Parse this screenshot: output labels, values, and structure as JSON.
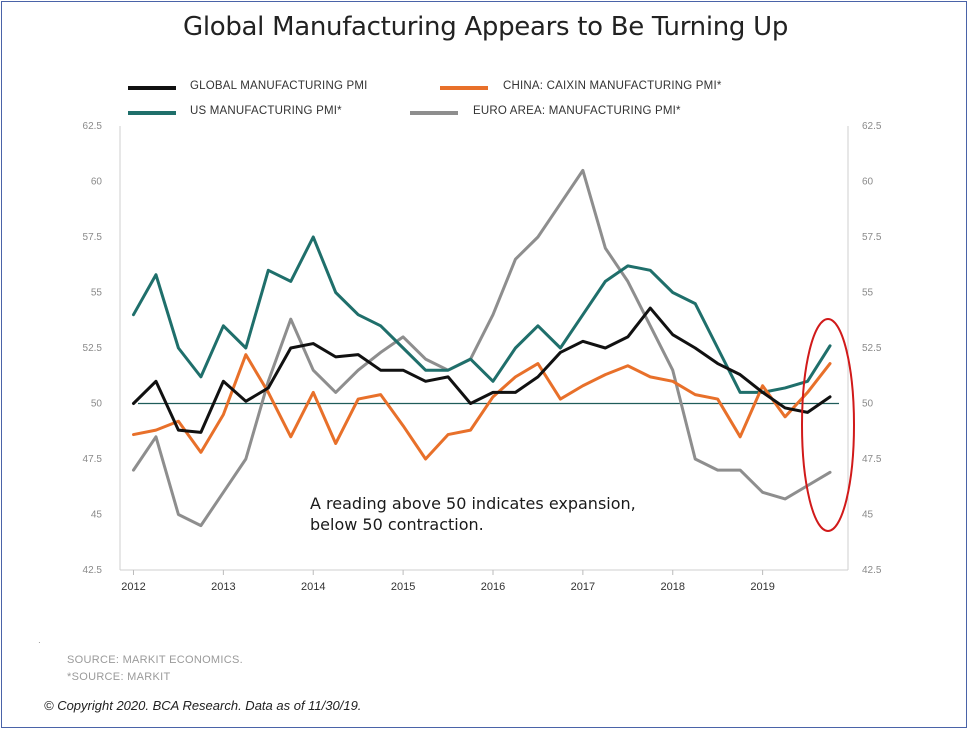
{
  "title": "Global Manufacturing Appears to Be Turning Up",
  "legend": [
    {
      "label": "GLOBAL MANUFACTURING PMI",
      "color": "#111111"
    },
    {
      "label": "CHINA: CAIXIN MANUFACTURING PMI*",
      "color": "#e8702a"
    },
    {
      "label": "US MANUFACTURING PMI*",
      "color": "#1f6f6b"
    },
    {
      "label": "EURO AREA: MANUFACTURING PMI*",
      "color": "#8e8e8e"
    }
  ],
  "annotation": "A reading above 50 indicates expansion, below 50 contraction.",
  "annotation_line1": "A reading above 50 indicates expansion,",
  "annotation_line2": "below 50 contraction.",
  "source1": "SOURCE: MARKIT ECONOMICS.",
  "source2": "*SOURCE: MARKIT",
  "copyright": "© Copyright 2020. BCA Research. Data as of 11/30/19.",
  "highlight_color": "#d11a1a",
  "chart_data": {
    "type": "line",
    "title": "Global Manufacturing Appears to Be Turning Up",
    "xlabel": "",
    "ylabel": "",
    "ylim": [
      42.5,
      62.5
    ],
    "yticks": [
      "62.5",
      "60",
      "57.5",
      "55",
      "52.5",
      "50",
      "47.5",
      "45",
      "42.5"
    ],
    "xticks": [
      "2012",
      "2013",
      "2014",
      "2015",
      "2016",
      "2017",
      "2018",
      "2019"
    ],
    "reference_line": 50,
    "x_start": 2012.0,
    "x_step": 0.25,
    "series": [
      {
        "name": "GLOBAL MANUFACTURING PMI",
        "color": "#111111",
        "values": [
          50.0,
          51.0,
          48.8,
          48.7,
          51.0,
          50.1,
          50.7,
          52.5,
          52.7,
          52.1,
          52.2,
          51.5,
          51.5,
          51.0,
          51.2,
          50.0,
          50.5,
          50.5,
          51.2,
          52.3,
          52.8,
          52.5,
          53.0,
          54.3,
          53.1,
          52.5,
          51.8,
          51.3,
          50.5,
          49.8,
          49.6,
          50.3
        ]
      },
      {
        "name": "CHINA: CAIXIN MANUFACTURING PMI*",
        "color": "#e8702a",
        "values": [
          48.6,
          48.8,
          49.2,
          47.8,
          49.5,
          52.2,
          50.5,
          48.5,
          50.5,
          48.2,
          50.2,
          50.4,
          49.0,
          47.5,
          48.6,
          48.8,
          50.3,
          51.2,
          51.8,
          50.2,
          50.8,
          51.3,
          51.7,
          51.2,
          51.0,
          50.4,
          50.2,
          48.5,
          50.8,
          49.4,
          50.5,
          51.8
        ]
      },
      {
        "name": "US MANUFACTURING PMI*",
        "color": "#1f6f6b",
        "values": [
          54.0,
          55.8,
          52.5,
          51.2,
          53.5,
          52.5,
          56.0,
          55.5,
          57.5,
          55.0,
          54.0,
          53.5,
          52.5,
          51.5,
          51.5,
          52.0,
          51.0,
          52.5,
          53.5,
          52.5,
          54.0,
          55.5,
          56.2,
          56.0,
          55.0,
          54.5,
          52.5,
          50.5,
          50.5,
          50.7,
          51.0,
          52.6
        ]
      },
      {
        "name": "EURO AREA: MANUFACTURING PMI*",
        "color": "#8e8e8e",
        "values": [
          47.0,
          48.5,
          45.0,
          44.5,
          46.0,
          47.5,
          51.0,
          53.8,
          51.5,
          50.5,
          51.5,
          52.3,
          53.0,
          52.0,
          51.5,
          52.0,
          54.0,
          56.5,
          57.5,
          59.0,
          60.5,
          57.0,
          55.5,
          53.5,
          51.5,
          47.5,
          47.0,
          47.0,
          46.0,
          45.7,
          46.3,
          46.9
        ]
      }
    ]
  }
}
